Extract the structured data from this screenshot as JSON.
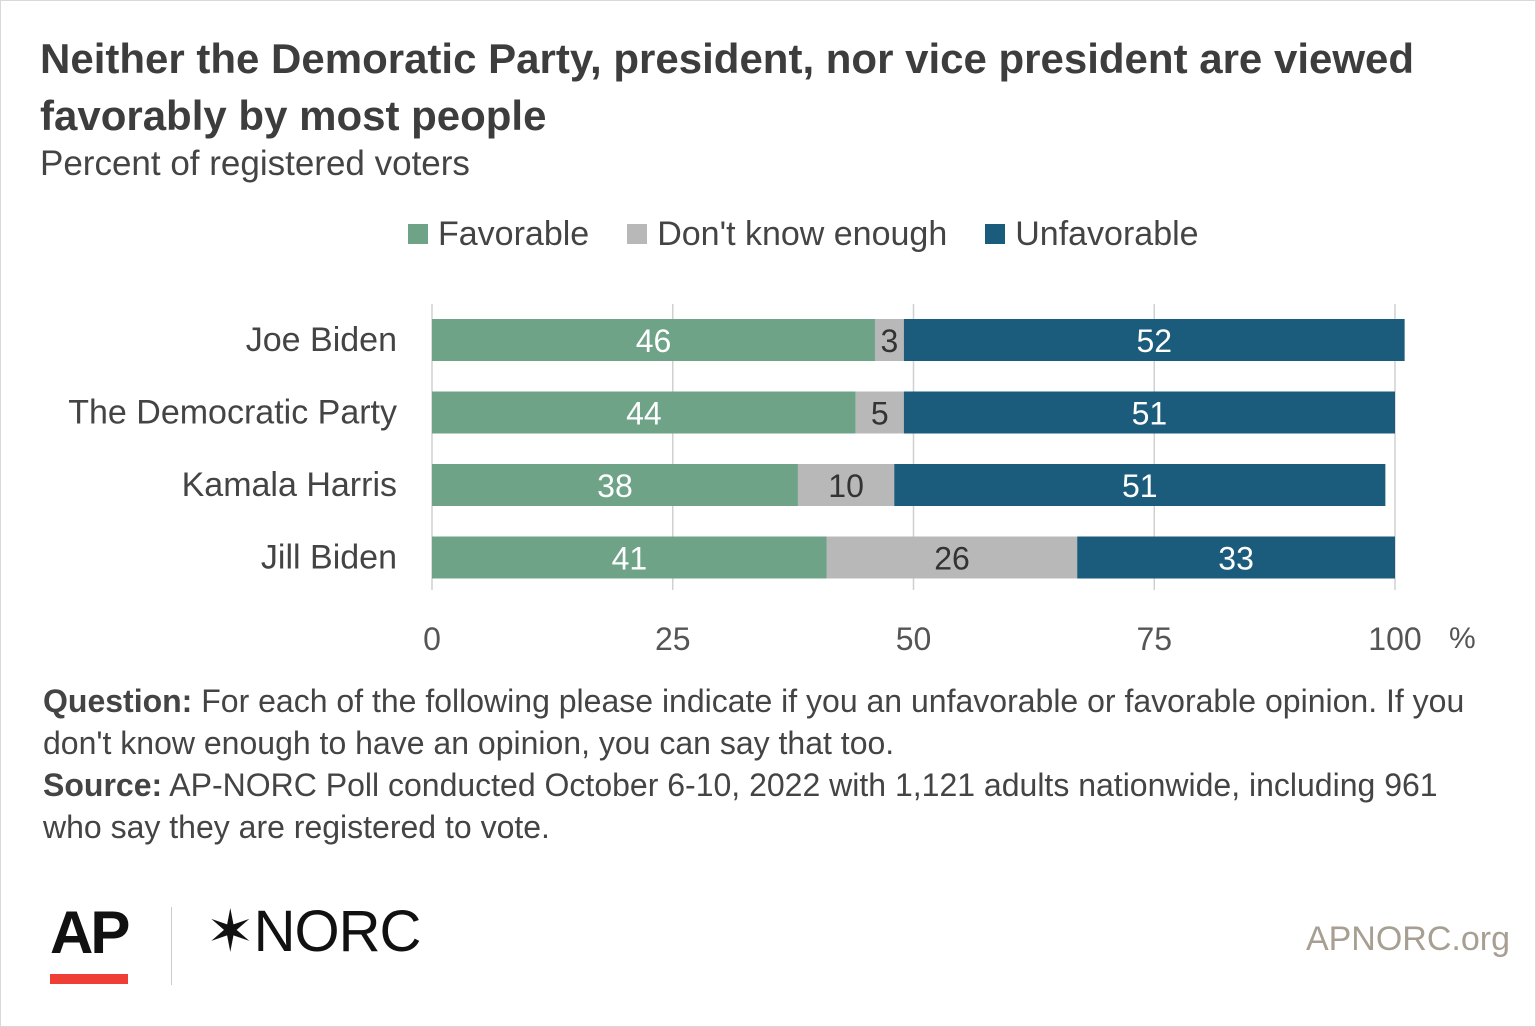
{
  "title": "Neither the Demoratic Party, president, nor vice president are viewed favorably by most people",
  "subtitle": "Percent of registered voters",
  "colors": {
    "favorable": "#6fa388",
    "dont_know": "#b8b8b8",
    "unfavorable": "#1b5b7b",
    "grid": "#d0d0d0",
    "text": "#444444"
  },
  "chart_data": {
    "type": "bar",
    "orientation": "horizontal",
    "stacked": true,
    "categories": [
      "Joe Biden",
      "The Democratic Party",
      "Kamala Harris",
      "Jill Biden"
    ],
    "series": [
      {
        "name": "Favorable",
        "values": [
          46,
          44,
          38,
          41
        ]
      },
      {
        "name": "Don't know enough",
        "values": [
          3,
          5,
          10,
          26
        ]
      },
      {
        "name": "Unfavorable",
        "values": [
          52,
          51,
          51,
          33
        ]
      }
    ],
    "xlim": [
      0,
      100
    ],
    "x_ticks": [
      "0",
      "25",
      "50",
      "75",
      "100"
    ],
    "x_unit": "%",
    "grid": true,
    "legend_position": "top"
  },
  "footnote": {
    "question_label": "Question:",
    "question_text": " For each of the following please indicate if you an unfavorable or favorable opinion.  If you don't know enough to have an opinion, you can say that too.",
    "source_label": "Source:",
    "source_text": " AP-NORC Poll conducted October 6-10, 2022 with 1,121 adults nationwide, including 961 who say they are registered to vote."
  },
  "logos": {
    "ap": "AP",
    "norc_symbol": "✶",
    "norc": "NORC"
  },
  "site": "APNORC.org"
}
